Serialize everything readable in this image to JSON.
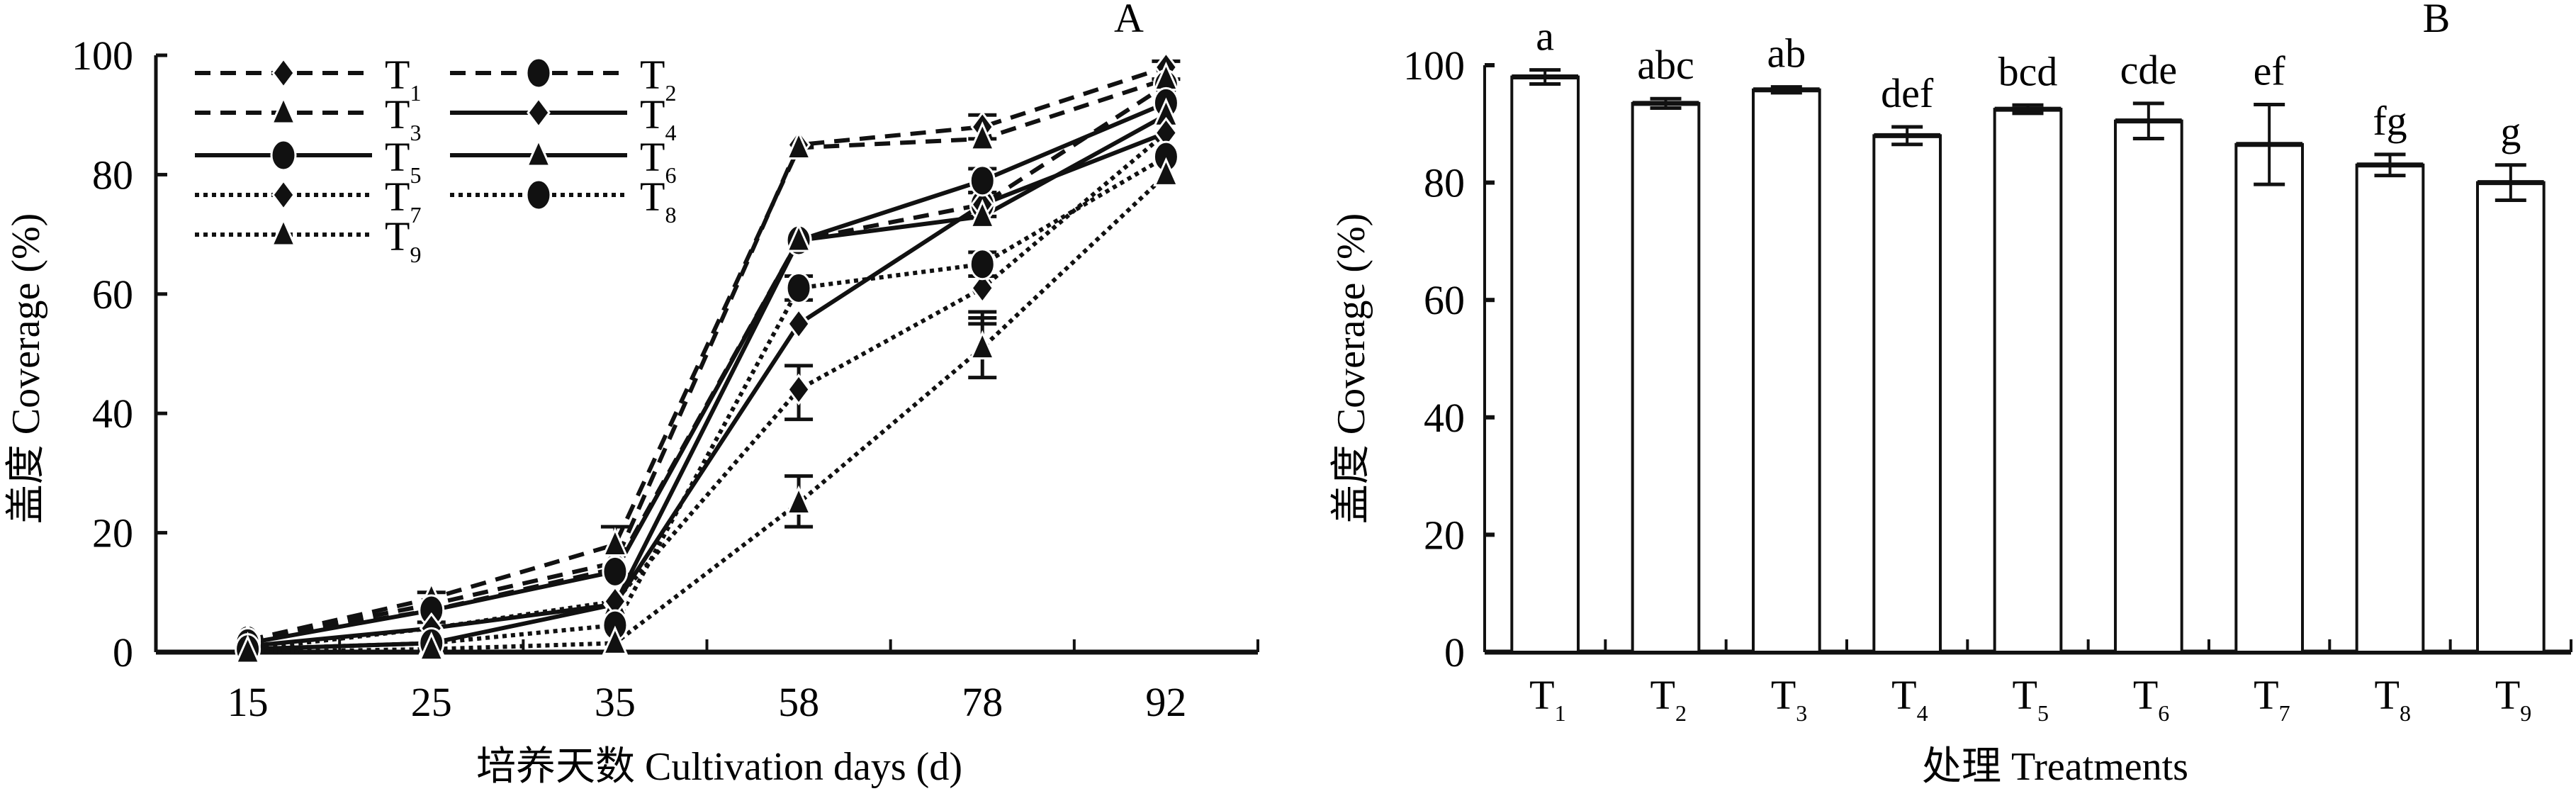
{
  "chart_data": [
    {
      "panel": "A",
      "type": "line",
      "title": "",
      "xlabel": "培养天数 Cultivation days (d)",
      "ylabel": "盖度 Coverage (%)",
      "x": [
        15,
        25,
        35,
        58,
        78,
        92
      ],
      "x_tick_labels": [
        "15",
        "25",
        "35",
        "58",
        "78",
        "92"
      ],
      "ylim": [
        0,
        100
      ],
      "y_ticks": [
        0,
        20,
        40,
        60,
        80,
        100
      ],
      "grid": false,
      "legend_position": "top-left",
      "series": [
        {
          "name": "T1",
          "sub": "1",
          "line": "dashed",
          "marker": "diamond",
          "values": [
            2,
            8,
            15,
            85,
            88,
            98
          ]
        },
        {
          "name": "T2",
          "sub": "2",
          "line": "dashed",
          "marker": "circle",
          "values": [
            2,
            7,
            14,
            69,
            75,
            95
          ]
        },
        {
          "name": "T3",
          "sub": "3",
          "line": "dashed",
          "marker": "triangle",
          "values": [
            2,
            9,
            18,
            84.5,
            86,
            96
          ]
        },
        {
          "name": "T4",
          "sub": "4",
          "line": "solid",
          "marker": "diamond",
          "values": [
            1,
            4,
            8,
            55,
            75,
            87
          ]
        },
        {
          "name": "T5",
          "sub": "5",
          "line": "solid",
          "marker": "circle",
          "values": [
            1.5,
            7,
            13.5,
            69,
            79,
            92
          ]
        },
        {
          "name": "T6",
          "sub": "6",
          "line": "solid",
          "marker": "triangle",
          "values": [
            0.5,
            1.5,
            8,
            69,
            73,
            90
          ]
        },
        {
          "name": "T7",
          "sub": "7",
          "line": "dotted",
          "marker": "diamond",
          "values": [
            0.5,
            4,
            8.5,
            44,
            61,
            87
          ]
        },
        {
          "name": "T8",
          "sub": "8",
          "line": "dotted",
          "marker": "circle",
          "values": [
            0.5,
            1.5,
            4.5,
            61,
            65,
            83
          ]
        },
        {
          "name": "T9",
          "sub": "9",
          "line": "dotted",
          "marker": "triangle",
          "values": [
            0,
            0.5,
            1.5,
            25,
            51,
            80
          ]
        }
      ],
      "error_bars": [
        {
          "series": "T7",
          "x": 58,
          "low": 39,
          "high": 48
        },
        {
          "series": "T9",
          "x": 58,
          "low": 21,
          "high": 29.5
        },
        {
          "series": "T9",
          "x": 78,
          "low": 46,
          "high": 56
        },
        {
          "series": "T7",
          "x": 78,
          "low": 55,
          "high": 57
        },
        {
          "series": "T1",
          "x": 35,
          "low": 13,
          "high": 21
        },
        {
          "series": "T2",
          "x": 25,
          "low": 5,
          "high": 10
        },
        {
          "series": "T1",
          "x": 78,
          "low": 86,
          "high": 90
        },
        {
          "series": "T2",
          "x": 78,
          "low": 73,
          "high": 77
        },
        {
          "series": "T5",
          "x": 78,
          "low": 77,
          "high": 81
        },
        {
          "series": "T8",
          "x": 58,
          "low": 59,
          "high": 63
        },
        {
          "series": "T8",
          "x": 78,
          "low": 63,
          "high": 67
        },
        {
          "series": "T1",
          "x": 92,
          "low": 96,
          "high": 99
        }
      ]
    },
    {
      "panel": "B",
      "type": "bar",
      "title": "",
      "xlabel": "处理 Treatments",
      "ylabel": "盖度 Coverage (%)",
      "categories": [
        "T1",
        "T2",
        "T3",
        "T4",
        "T5",
        "T6",
        "T7",
        "T8",
        "T9"
      ],
      "category_subs": [
        "1",
        "2",
        "3",
        "4",
        "5",
        "6",
        "7",
        "8",
        "9"
      ],
      "values": [
        98,
        93.5,
        95.8,
        88,
        92.5,
        90.5,
        86.5,
        83,
        80
      ],
      "errors": [
        1.2,
        0.8,
        0.5,
        1.5,
        0.7,
        3,
        6.8,
        1.8,
        3
      ],
      "significance": [
        "a",
        "abc",
        "ab",
        "def",
        "bcd",
        "cde",
        "ef",
        "fg",
        "g"
      ],
      "ylim": [
        0,
        100
      ],
      "y_ticks": [
        0,
        20,
        40,
        60,
        80,
        100
      ],
      "grid": false
    }
  ],
  "panels": {
    "a_label": "A",
    "b_label": "B",
    "a_xlabel": "培养天数 Cultivation days (d)",
    "a_ylabel": "盖度 Coverage (%)",
    "b_xlabel": "处理 Treatments",
    "b_ylabel": "盖度 Coverage (%)"
  },
  "colors": {
    "ink": "#111111",
    "bar_fill": "#ffffff"
  }
}
